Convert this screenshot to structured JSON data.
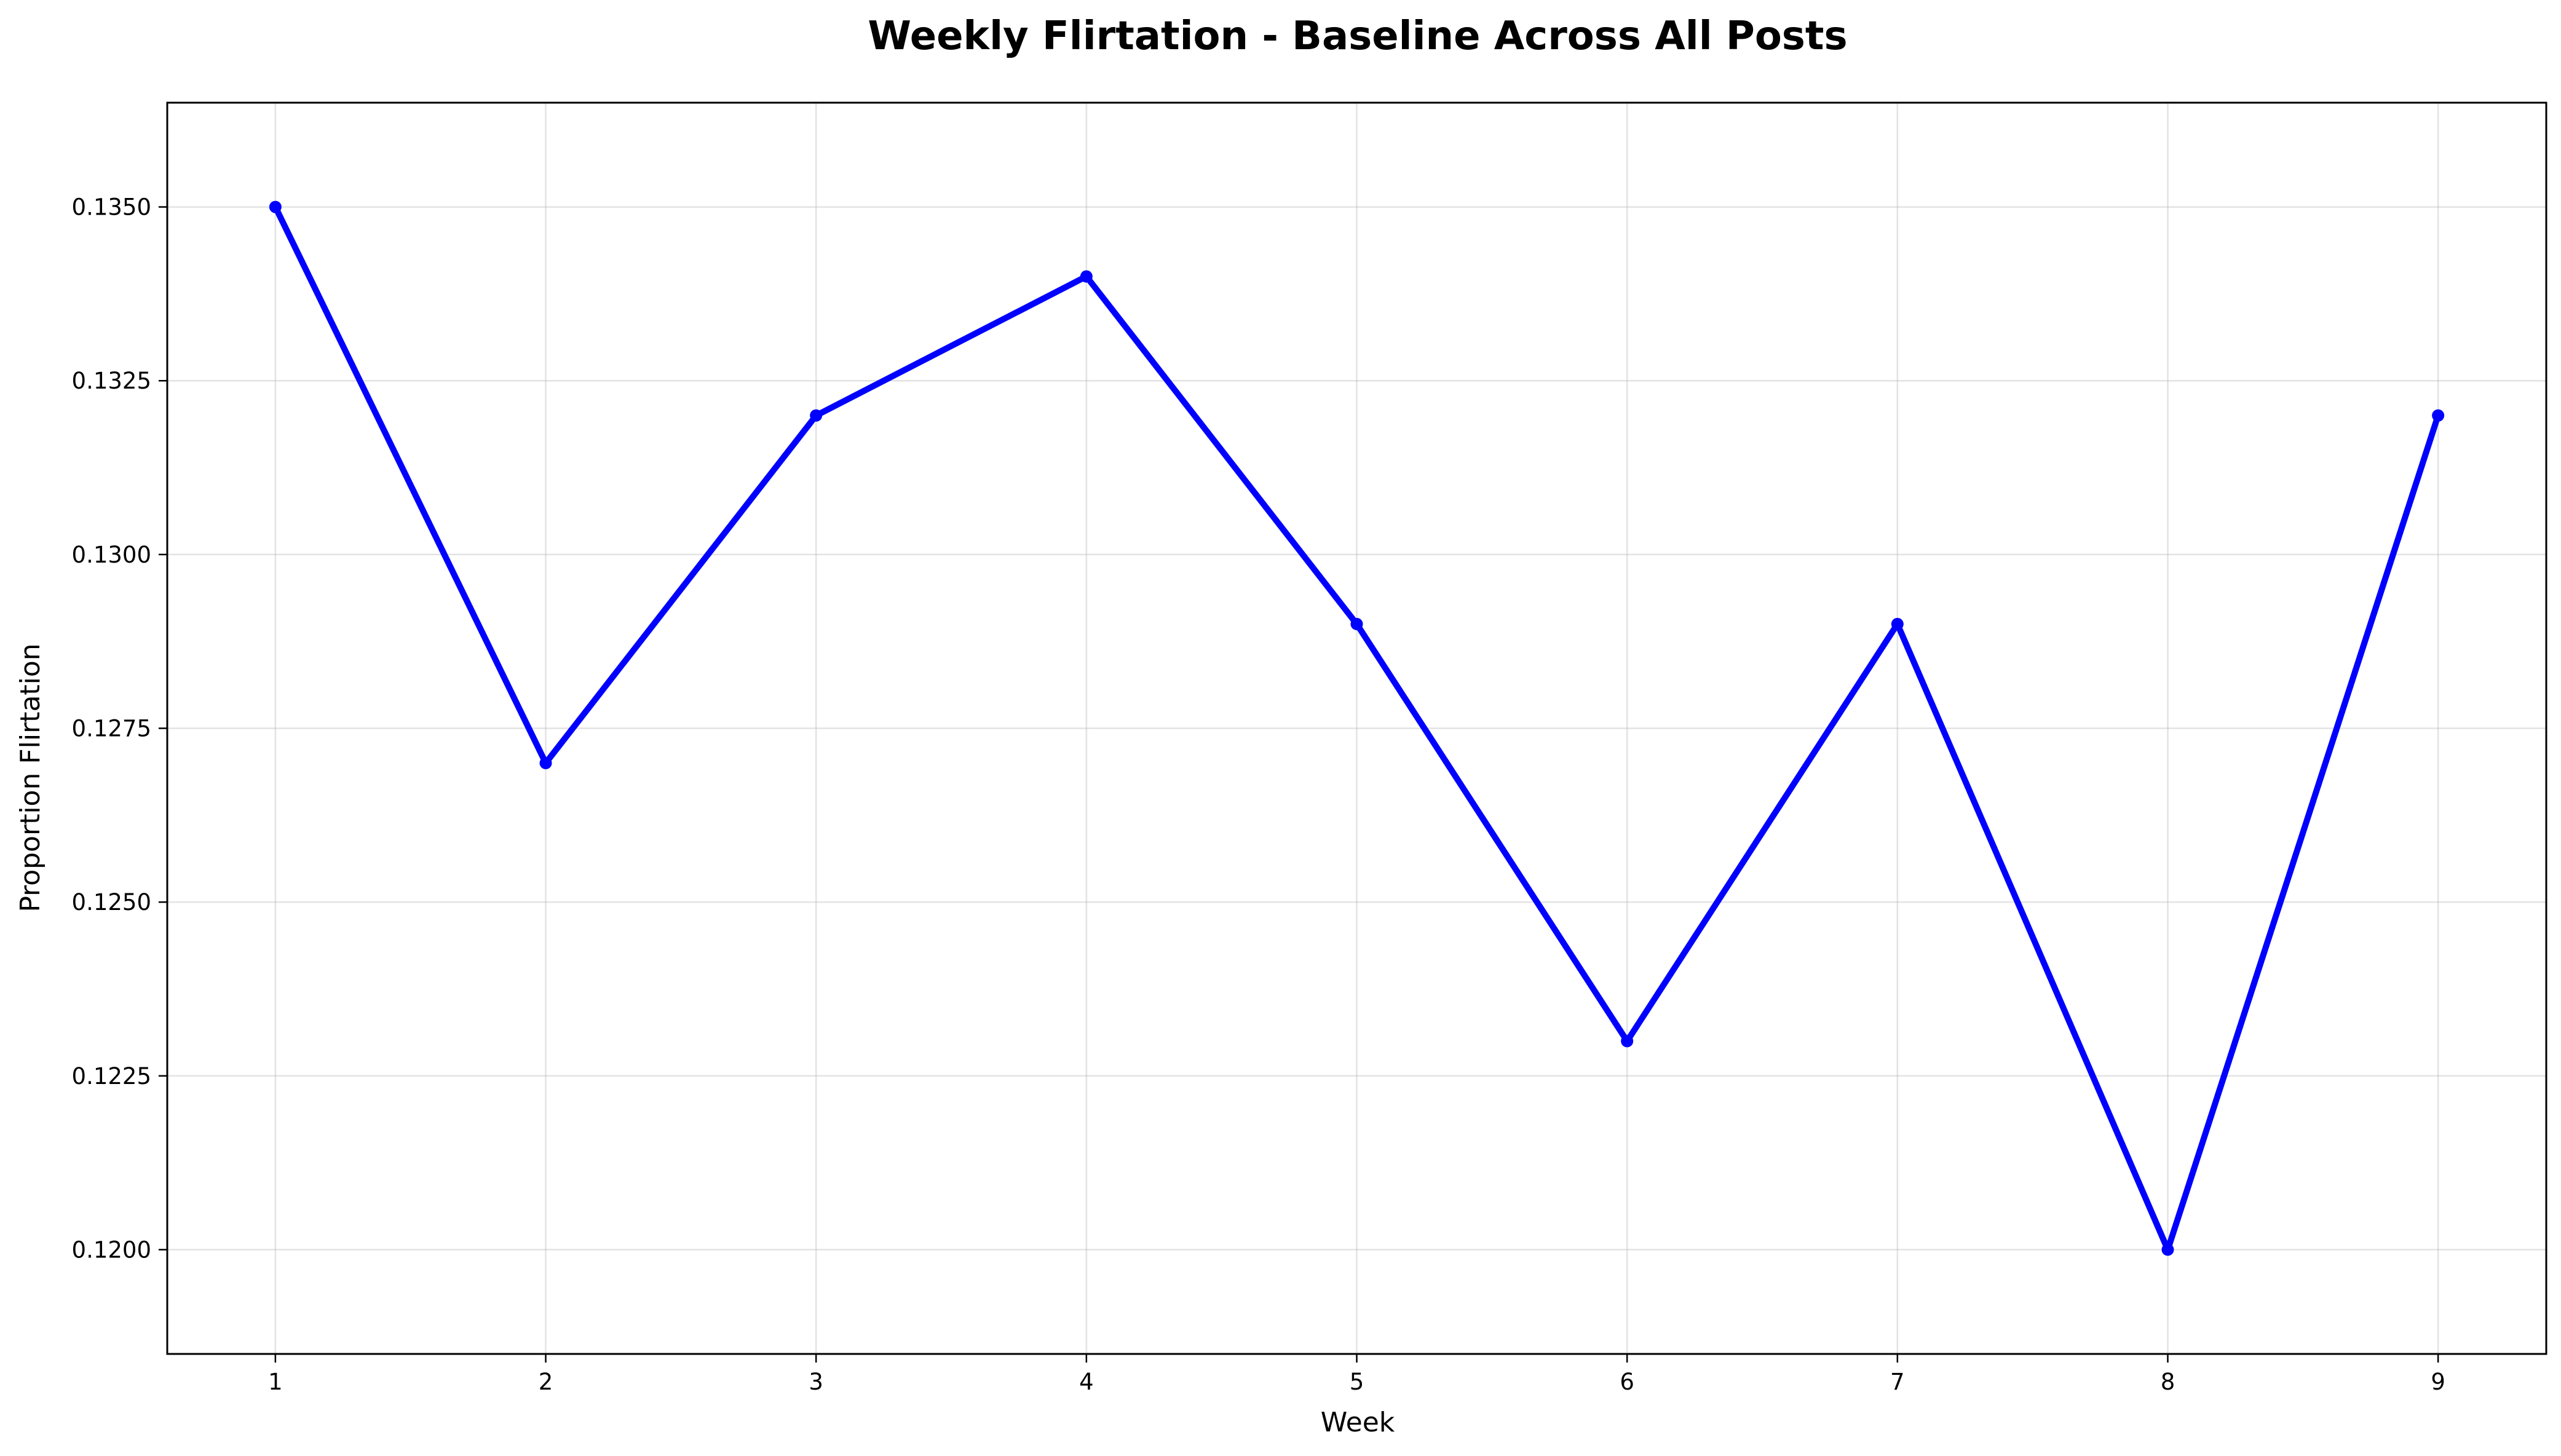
{
  "chart_data": {
    "type": "line",
    "title": "Weekly Flirtation - Baseline Across All Posts",
    "xlabel": "Week",
    "ylabel": "Proportion Flirtation",
    "x": [
      1,
      2,
      3,
      4,
      5,
      6,
      7,
      8,
      9
    ],
    "series": [
      {
        "values": [
          0.135,
          0.127,
          0.132,
          0.134,
          0.129,
          0.123,
          0.129,
          0.12,
          0.132
        ],
        "color": "#0000ff",
        "marker": "circle"
      }
    ],
    "xlim": [
      0.6,
      9.4
    ],
    "ylim": [
      0.1185,
      0.1365
    ],
    "xticks": [
      1,
      2,
      3,
      4,
      5,
      6,
      7,
      8,
      9
    ],
    "xtick_labels": [
      "1",
      "2",
      "3",
      "4",
      "5",
      "6",
      "7",
      "8",
      "9"
    ],
    "yticks": [
      0.12,
      0.1225,
      0.125,
      0.1275,
      0.13,
      0.1325,
      0.135
    ],
    "ytick_labels": [
      "0.1200",
      "0.1225",
      "0.1250",
      "0.1275",
      "0.1300",
      "0.1325",
      "0.1350"
    ],
    "grid": true,
    "legend": "none"
  }
}
